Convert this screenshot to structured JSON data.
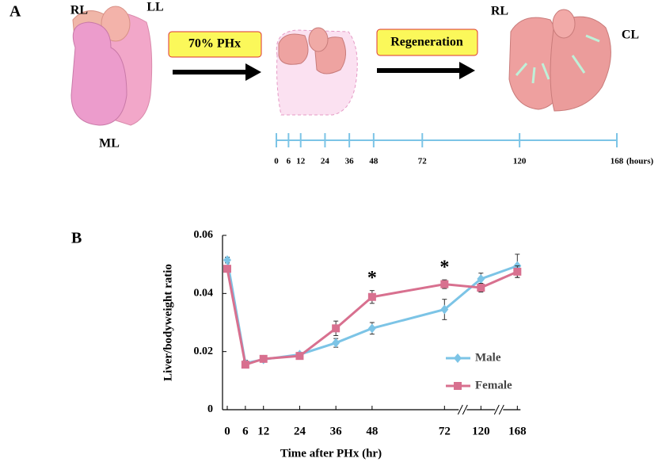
{
  "panel_a": {
    "label": "A",
    "lobes_before": [
      "RL",
      "LL",
      "ML"
    ],
    "steps": [
      "70% PHx",
      "Regeneration"
    ],
    "lobes_after": [
      "RL",
      "CL"
    ],
    "timeline": {
      "lim": [
        0,
        168
      ],
      "ticks": [
        0,
        6,
        12,
        24,
        36,
        48,
        72,
        120,
        168
      ],
      "unit": "(hours)"
    }
  },
  "chart_data": {
    "type": "line",
    "panel_label": "B",
    "xlabel": "Time after PHx (hr)",
    "ylabel": "Liver/bodyweight ratio",
    "x": [
      0,
      6,
      12,
      24,
      36,
      48,
      72,
      120,
      168
    ],
    "xticks": [
      0,
      6,
      12,
      24,
      36,
      48,
      72,
      120,
      168
    ],
    "xbreak": [
      72,
      120
    ],
    "ylim": [
      0,
      0.06
    ],
    "yticks": [
      0,
      0.02,
      0.04,
      0.06
    ],
    "series": [
      {
        "name": "Male",
        "color": "#7cc4e6",
        "marker": "diamond",
        "values": [
          0.0515,
          0.016,
          0.0173,
          0.019,
          0.023,
          0.028,
          0.0345,
          0.045,
          0.0495
        ],
        "errors": [
          0.001,
          0.001,
          0.0007,
          0.0007,
          0.0015,
          0.002,
          0.0035,
          0.002,
          0.004
        ]
      },
      {
        "name": "Female",
        "color": "#d8708f",
        "marker": "square",
        "values": [
          0.0485,
          0.0155,
          0.0175,
          0.0185,
          0.028,
          0.0388,
          0.0432,
          0.042,
          0.0475
        ],
        "errors": [
          0.001,
          0.001,
          0.0007,
          0.0007,
          0.0025,
          0.0022,
          0.0015,
          0.0015,
          0.002
        ]
      }
    ],
    "annotations": [
      {
        "x": 48,
        "text": "*"
      },
      {
        "x": 72,
        "text": "*"
      }
    ],
    "legend": "lower right"
  }
}
